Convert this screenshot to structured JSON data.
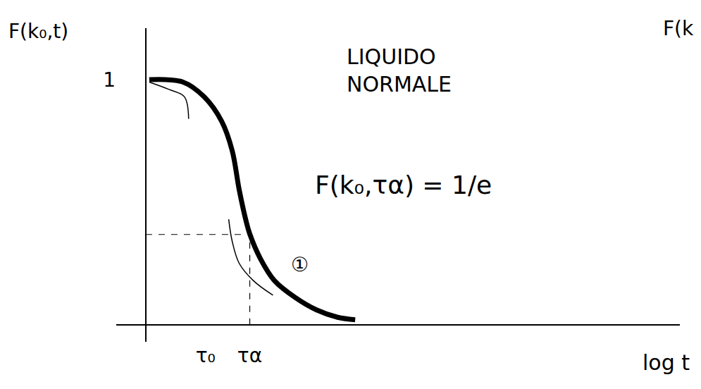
{
  "chart_data": {
    "type": "line",
    "title": "LIQUIDO NORMALE",
    "xlabel": "log t",
    "ylabel": "F(k₀,t)",
    "series": [
      {
        "color": "#000000",
        "line_style": "solid",
        "x": [
          0.05,
          0.53,
          0.83,
          1.08,
          1.23,
          1.33,
          1.43,
          1.48,
          1.63,
          1.83,
          2.13,
          2.43,
          2.73,
          2.98
        ],
        "values": [
          1.0,
          0.99,
          0.93,
          0.83,
          0.71,
          0.55,
          0.42,
          0.37,
          0.27,
          0.18,
          0.11,
          0.06,
          0.03,
          0.02
        ]
      },
      {
        "color": "#000000",
        "line_style": "solid",
        "x": [
          0.05,
          0.33,
          0.55,
          0.61
        ],
        "values": [
          0.99,
          0.96,
          0.93,
          0.84
        ]
      },
      {
        "color": "#000000",
        "line_style": "solid",
        "x": [
          1.18,
          1.23,
          1.33,
          1.53,
          1.81
        ],
        "values": [
          0.43,
          0.34,
          0.25,
          0.18,
          0.12
        ]
      }
    ],
    "reference": {
      "x": 1.48,
      "y": 0.368
    },
    "annotations": [
      "F(k₀,τα) = 1/e",
      "①",
      "F(k"
    ],
    "xlim": [
      -0.42,
      7.6
    ],
    "ylim": [
      -0.07,
      1.21
    ],
    "xticks": [
      {
        "value": 0.85,
        "label": "τ₀"
      },
      {
        "value": 1.48,
        "label": "τα"
      }
    ],
    "yticks": [
      1
    ],
    "grid": false
  }
}
